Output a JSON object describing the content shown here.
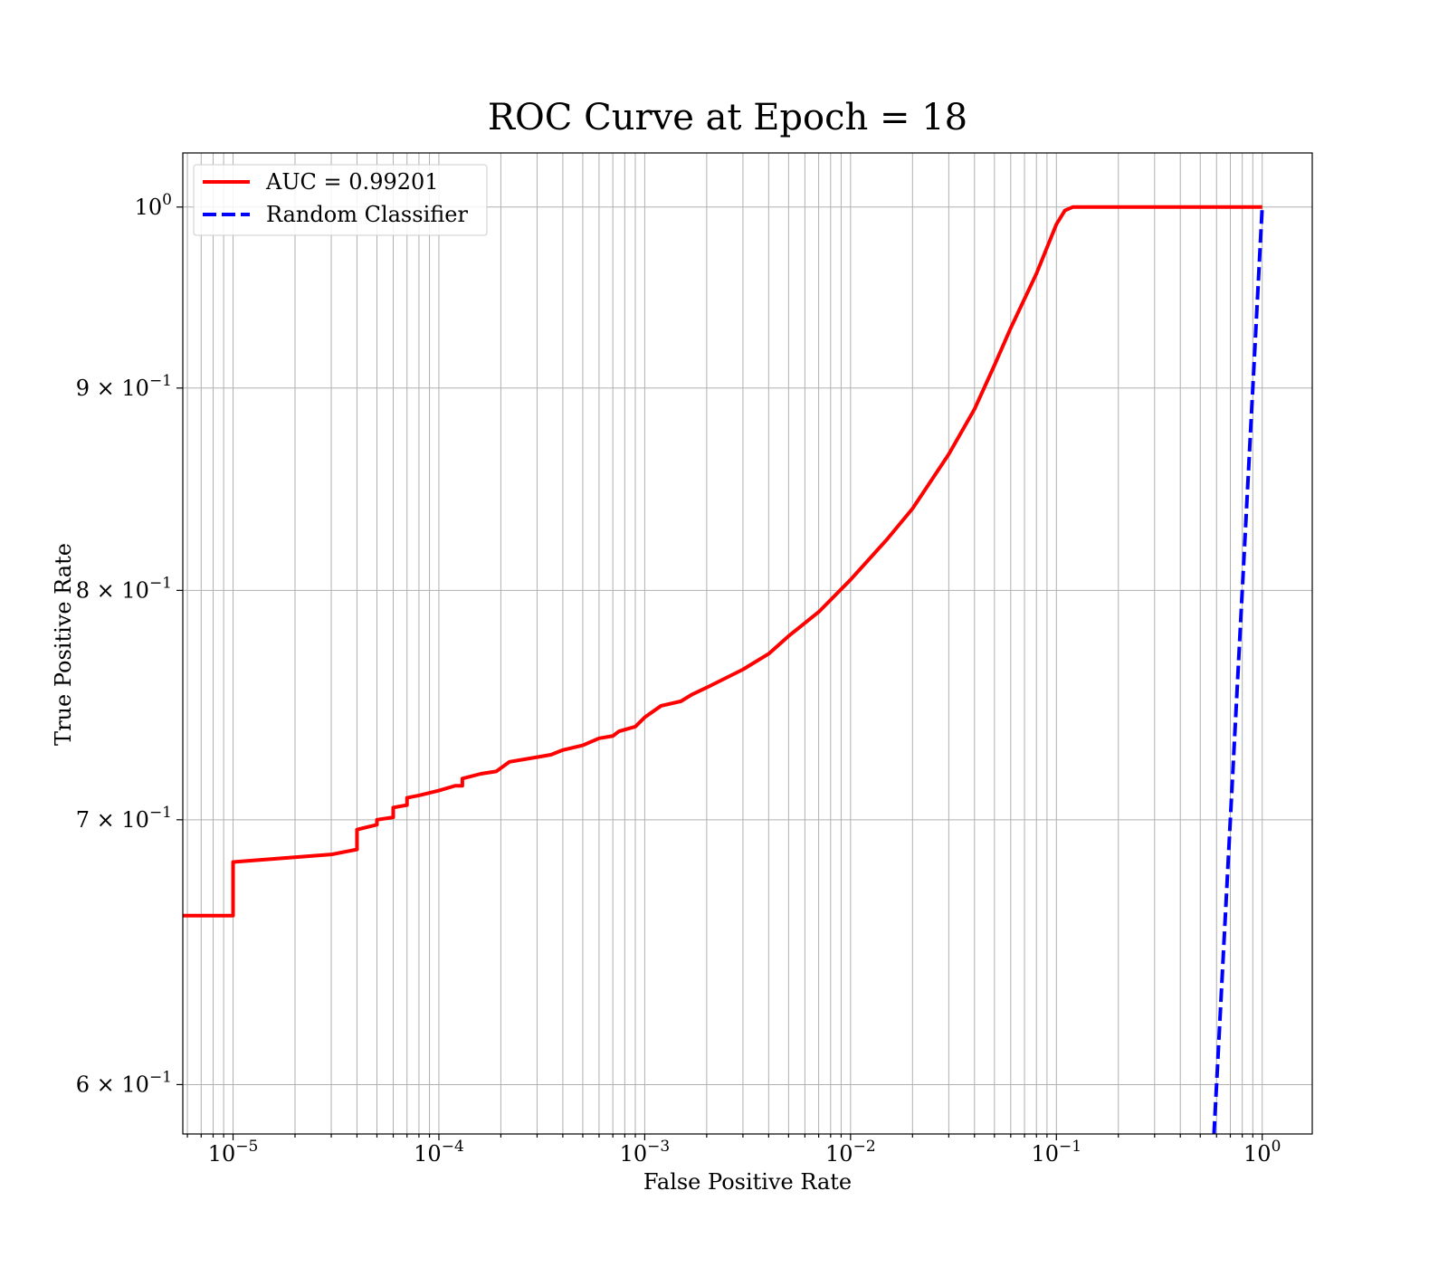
{
  "chart_data": {
    "type": "line",
    "title": "ROC Curve at Epoch = 18",
    "xlabel": "False Positive Rate",
    "ylabel": "True Positive Rate",
    "xscale": "log",
    "yscale": "log",
    "xlim": [
      5.7e-06,
      1.75
    ],
    "ylim": [
      0.583,
      1.032
    ],
    "grid": "on (major and minor)",
    "legend_position": "top-left",
    "x_ticks": [
      {
        "value": 1e-05,
        "base": "10",
        "exp": "−5"
      },
      {
        "value": 0.0001,
        "base": "10",
        "exp": "−4"
      },
      {
        "value": 0.001,
        "base": "10",
        "exp": "−3"
      },
      {
        "value": 0.01,
        "base": "10",
        "exp": "−2"
      },
      {
        "value": 0.1,
        "base": "10",
        "exp": "−1"
      },
      {
        "value": 1,
        "base": "10",
        "exp": "0"
      }
    ],
    "y_ticks": [
      {
        "value": 1.0,
        "mant": "",
        "base": "10",
        "exp": "0"
      },
      {
        "value": 0.9,
        "mant": "9 × ",
        "base": "10",
        "exp": "−1"
      },
      {
        "value": 0.8,
        "mant": "8 × ",
        "base": "10",
        "exp": "−1"
      },
      {
        "value": 0.7,
        "mant": "7 × ",
        "base": "10",
        "exp": "−1"
      },
      {
        "value": 0.6,
        "mant": "6 × ",
        "base": "10",
        "exp": "−1"
      }
    ],
    "series": [
      {
        "name": "AUC = 0.99201",
        "color": "#ff0000",
        "style": "solid",
        "points": [
          [
            5.7e-06,
            0.662
          ],
          [
            1e-05,
            0.662
          ],
          [
            1e-05,
            0.683
          ],
          [
            3e-05,
            0.686
          ],
          [
            4e-05,
            0.688
          ],
          [
            4e-05,
            0.696
          ],
          [
            5e-05,
            0.698
          ],
          [
            5e-05,
            0.7
          ],
          [
            6e-05,
            0.701
          ],
          [
            6e-05,
            0.705
          ],
          [
            7e-05,
            0.706
          ],
          [
            7e-05,
            0.709
          ],
          [
            8e-05,
            0.71
          ],
          [
            0.0001,
            0.712
          ],
          [
            0.00012,
            0.714
          ],
          [
            0.00013,
            0.714
          ],
          [
            0.00013,
            0.717
          ],
          [
            0.00016,
            0.719
          ],
          [
            0.00019,
            0.72
          ],
          [
            0.00022,
            0.724
          ],
          [
            0.0003,
            0.726
          ],
          [
            0.00035,
            0.727
          ],
          [
            0.0004,
            0.729
          ],
          [
            0.0005,
            0.731
          ],
          [
            0.0006,
            0.734
          ],
          [
            0.0007,
            0.735
          ],
          [
            0.00075,
            0.737
          ],
          [
            0.0009,
            0.739
          ],
          [
            0.001,
            0.743
          ],
          [
            0.0012,
            0.748
          ],
          [
            0.0015,
            0.75
          ],
          [
            0.0017,
            0.753
          ],
          [
            0.002,
            0.756
          ],
          [
            0.003,
            0.764
          ],
          [
            0.004,
            0.771
          ],
          [
            0.005,
            0.779
          ],
          [
            0.007,
            0.79
          ],
          [
            0.01,
            0.805
          ],
          [
            0.015,
            0.824
          ],
          [
            0.02,
            0.839
          ],
          [
            0.03,
            0.866
          ],
          [
            0.04,
            0.889
          ],
          [
            0.05,
            0.912
          ],
          [
            0.06,
            0.932
          ],
          [
            0.08,
            0.962
          ],
          [
            0.1,
            0.99
          ],
          [
            0.11,
            0.998
          ],
          [
            0.12,
            1.0
          ],
          [
            1.0,
            1.0
          ]
        ]
      },
      {
        "name": "Random Classifier",
        "color": "#0000ff",
        "style": "dashed",
        "points": [
          [
            0.57,
            0.57
          ],
          [
            1.0,
            1.0
          ]
        ]
      }
    ]
  }
}
